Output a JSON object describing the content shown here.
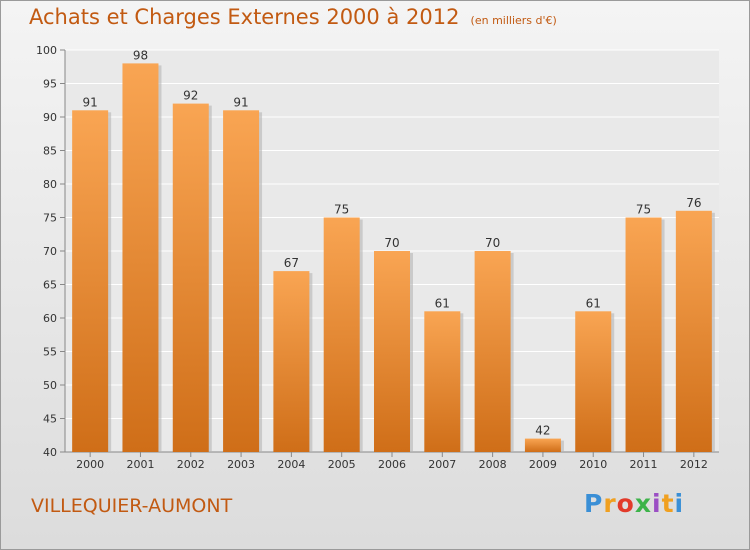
{
  "header": {
    "title": "Achats et Charges Externes 2000 à 2012",
    "subtitle": "(en milliers d'€)"
  },
  "footer": {
    "town": "VILLEQUIER-AUMONT",
    "logo": "Proxiti"
  },
  "colors": {
    "bar_light": "#f9a553",
    "bar_dark": "#cf6e18",
    "text_orange": "#c25a12"
  },
  "chart_data": {
    "type": "bar",
    "title": "Achats et Charges Externes 2000 à 2012",
    "subtitle": "(en milliers d'€)",
    "categories": [
      "2000",
      "2001",
      "2002",
      "2003",
      "2004",
      "2005",
      "2006",
      "2007",
      "2008",
      "2009",
      "2010",
      "2011",
      "2012"
    ],
    "values": [
      91,
      98,
      92,
      91,
      67,
      75,
      70,
      61,
      70,
      42,
      61,
      75,
      76
    ],
    "ylim": [
      40,
      100
    ],
    "yticks": [
      40,
      45,
      50,
      55,
      60,
      65,
      70,
      75,
      80,
      85,
      90,
      95,
      100
    ],
    "grid": true,
    "data_labels": true
  }
}
